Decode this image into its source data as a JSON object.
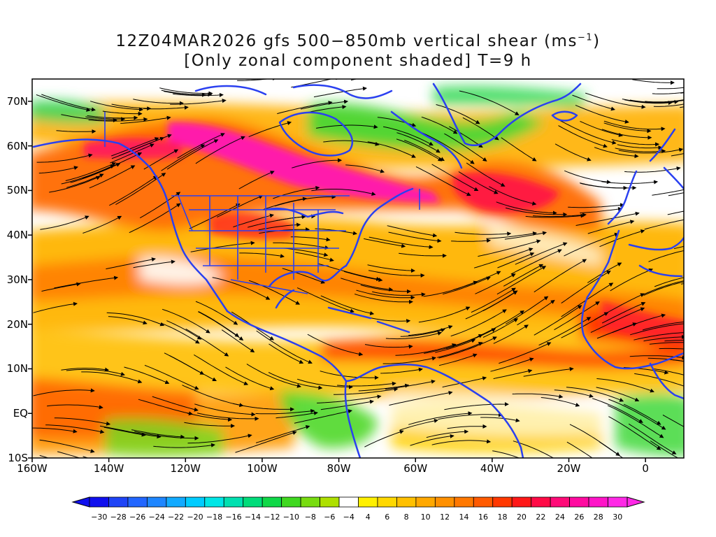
{
  "title": {
    "line1_prefix": "12Z04MAR2026 gfs 500−850mb vertical shear (ms",
    "line1_sup": "−1",
    "line1_suffix": ")",
    "line2": "[Only zonal component shaded] T=9 h"
  },
  "axes": {
    "lat_labels": [
      "70N",
      "60N",
      "50N",
      "40N",
      "30N",
      "20N",
      "10N",
      "EQ",
      "10S"
    ],
    "lat_values": [
      70,
      60,
      50,
      40,
      30,
      20,
      10,
      0,
      -10
    ],
    "lon_labels": [
      "160W",
      "140W",
      "120W",
      "100W",
      "80W",
      "60W",
      "40W",
      "20W",
      "0"
    ],
    "lon_values": [
      -160,
      -140,
      -120,
      -100,
      -80,
      -60,
      -40,
      -20,
      0
    ],
    "lon_range": [
      -160,
      10
    ],
    "lat_range": [
      -10,
      75
    ]
  },
  "colorbar": {
    "labels": [
      "−30",
      "−28",
      "−26",
      "−24",
      "−22",
      "−20",
      "−18",
      "−16",
      "−14",
      "−12",
      "−10",
      "−8",
      "−6",
      "−4",
      "4",
      "6",
      "8",
      "10",
      "12",
      "14",
      "16",
      "18",
      "20",
      "22",
      "24",
      "26",
      "28",
      "30"
    ],
    "colors": [
      "#1010ee",
      "#1f44f6",
      "#2266ff",
      "#1e86ff",
      "#12aaff",
      "#00ccff",
      "#00e6e6",
      "#00e0b0",
      "#00dc7a",
      "#10d848",
      "#40d820",
      "#78dc10",
      "#aee000",
      "#ffffff",
      "#fff000",
      "#ffd800",
      "#ffc000",
      "#ffa800",
      "#ff9000",
      "#ff7800",
      "#ff5a00",
      "#ff3800",
      "#ff1818",
      "#ff0a46",
      "#ff0a78",
      "#ff0aa0",
      "#ff14c8",
      "#ff28e6"
    ]
  },
  "colors": {
    "coastline": "#2a40f0",
    "streamline": "#000000",
    "background_weak": "#ffffff"
  }
}
